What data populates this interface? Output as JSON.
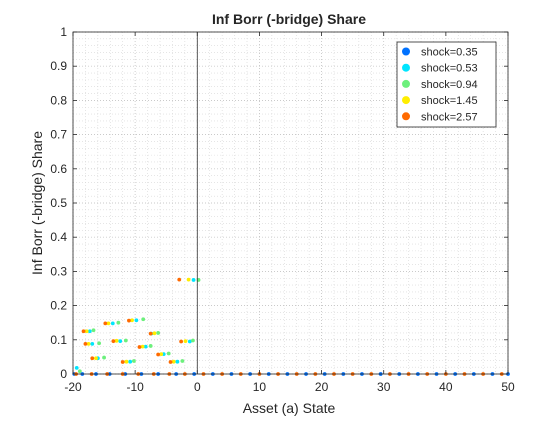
{
  "chart_data": {
    "type": "scatter",
    "title": "Inf Borr (-bridge) Share",
    "xlabel": "Asset (a) State",
    "ylabel": "Inf Borr (-bridge) Share",
    "xlim": [
      -20,
      50
    ],
    "ylim": [
      0,
      1
    ],
    "x_ticks": [
      -20,
      -10,
      0,
      10,
      20,
      30,
      40,
      50
    ],
    "x_tick_labels": [
      "-20",
      "-10",
      "0",
      "10",
      "20",
      "30",
      "40",
      "50"
    ],
    "y_ticks": [
      0,
      0.1,
      0.2,
      0.3,
      0.4,
      0.5,
      0.6,
      0.7,
      0.8,
      0.9,
      1
    ],
    "y_tick_labels": [
      "0",
      "0.1",
      "0.2",
      "0.3",
      "0.4",
      "0.5",
      "0.6",
      "0.7",
      "0.8",
      "0.9",
      "1"
    ],
    "grid": "on (major and minor, dotted)",
    "vertical_line_x": 0,
    "legend_position": "top-right",
    "series": [
      {
        "name": "shock=0.35",
        "color": "#0072ff",
        "points": [
          [
            -19.8,
            0
          ],
          [
            -18.5,
            0
          ],
          [
            -16.3,
            0
          ],
          [
            -14.1,
            0
          ],
          [
            -11.6,
            0
          ],
          [
            -9.0,
            0
          ],
          [
            -6.3,
            0
          ],
          [
            -3.4,
            0
          ],
          [
            -0.5,
            0
          ],
          [
            2.5,
            0
          ],
          [
            5.5,
            0
          ],
          [
            8.5,
            0
          ],
          [
            11.5,
            0
          ],
          [
            14.5,
            0
          ],
          [
            17.5,
            0
          ],
          [
            20.5,
            0
          ],
          [
            23.5,
            0
          ],
          [
            26.5,
            0
          ],
          [
            29.5,
            0
          ],
          [
            32.5,
            0
          ],
          [
            35.5,
            0
          ],
          [
            38.5,
            0
          ],
          [
            41.5,
            0
          ],
          [
            44.5,
            0
          ],
          [
            47.5,
            0
          ],
          [
            50,
            0
          ]
        ]
      },
      {
        "name": "shock=0.53",
        "color": "#00e5ff",
        "points": [
          [
            -19.4,
            0.018
          ],
          [
            -17.3,
            0.125
          ],
          [
            -16.9,
            0.088
          ],
          [
            -16.0,
            0.046
          ],
          [
            -13.6,
            0.148
          ],
          [
            -12.4,
            0.096
          ],
          [
            -10.8,
            0.036
          ],
          [
            -9.8,
            0.157
          ],
          [
            -8.3,
            0.08
          ],
          [
            -7.4,
            0.118
          ],
          [
            -5.4,
            0.058
          ],
          [
            -3.2,
            0.036
          ],
          [
            -1.2,
            0.095
          ],
          [
            -0.6,
            0.275
          ]
        ]
      },
      {
        "name": "shock=0.94",
        "color": "#6cf07c",
        "points": [
          [
            -18.9,
            0.008
          ],
          [
            -16.7,
            0.128
          ],
          [
            -15.8,
            0.09
          ],
          [
            -15.0,
            0.048
          ],
          [
            -12.7,
            0.15
          ],
          [
            -11.5,
            0.098
          ],
          [
            -10.2,
            0.038
          ],
          [
            -8.7,
            0.16
          ],
          [
            -7.5,
            0.082
          ],
          [
            -6.3,
            0.12
          ],
          [
            -4.6,
            0.06
          ],
          [
            -2.4,
            0.038
          ],
          [
            -0.7,
            0.098
          ],
          [
            0.2,
            0.275
          ]
        ]
      },
      {
        "name": "shock=1.45",
        "color": "#ffee00",
        "points": [
          [
            -17.8,
            0.125
          ],
          [
            -17.5,
            0.088
          ],
          [
            -16.3,
            0.046
          ],
          [
            -14.3,
            0.148
          ],
          [
            -13.0,
            0.097
          ],
          [
            -11.4,
            0.036
          ],
          [
            -10.5,
            0.157
          ],
          [
            -8.8,
            0.08
          ],
          [
            -6.9,
            0.119
          ],
          [
            -5.8,
            0.058
          ],
          [
            -3.8,
            0.036
          ],
          [
            -1.9,
            0.096
          ],
          [
            -1.4,
            0.276
          ]
        ]
      },
      {
        "name": "shock=2.57",
        "color": "#ff6a00",
        "points": [
          [
            -18.3,
            0.125
          ],
          [
            -18.0,
            0.088
          ],
          [
            -16.9,
            0.046
          ],
          [
            -14.8,
            0.148
          ],
          [
            -13.5,
            0.096
          ],
          [
            -12.0,
            0.035
          ],
          [
            -11.0,
            0.156
          ],
          [
            -9.3,
            0.079
          ],
          [
            -7.5,
            0.118
          ],
          [
            -6.3,
            0.057
          ],
          [
            -4.3,
            0.035
          ],
          [
            -2.6,
            0.095
          ],
          [
            -2.9,
            0.276
          ],
          [
            -19.5,
            0
          ],
          [
            -17.0,
            0
          ],
          [
            -14.5,
            0
          ],
          [
            -12.0,
            0
          ],
          [
            -9.5,
            0
          ],
          [
            -7.0,
            0
          ],
          [
            -4.5,
            0
          ],
          [
            -2.0,
            0
          ],
          [
            1.0,
            0
          ],
          [
            4.0,
            0
          ],
          [
            7.0,
            0
          ],
          [
            10.0,
            0
          ],
          [
            13.0,
            0
          ],
          [
            16.0,
            0
          ],
          [
            19.0,
            0
          ],
          [
            22.0,
            0
          ],
          [
            25.0,
            0
          ],
          [
            28.0,
            0
          ],
          [
            31.0,
            0
          ],
          [
            34.0,
            0
          ],
          [
            37.0,
            0
          ],
          [
            40.0,
            0
          ],
          [
            43.0,
            0
          ],
          [
            46.0,
            0
          ],
          [
            49.0,
            0
          ]
        ]
      }
    ]
  }
}
